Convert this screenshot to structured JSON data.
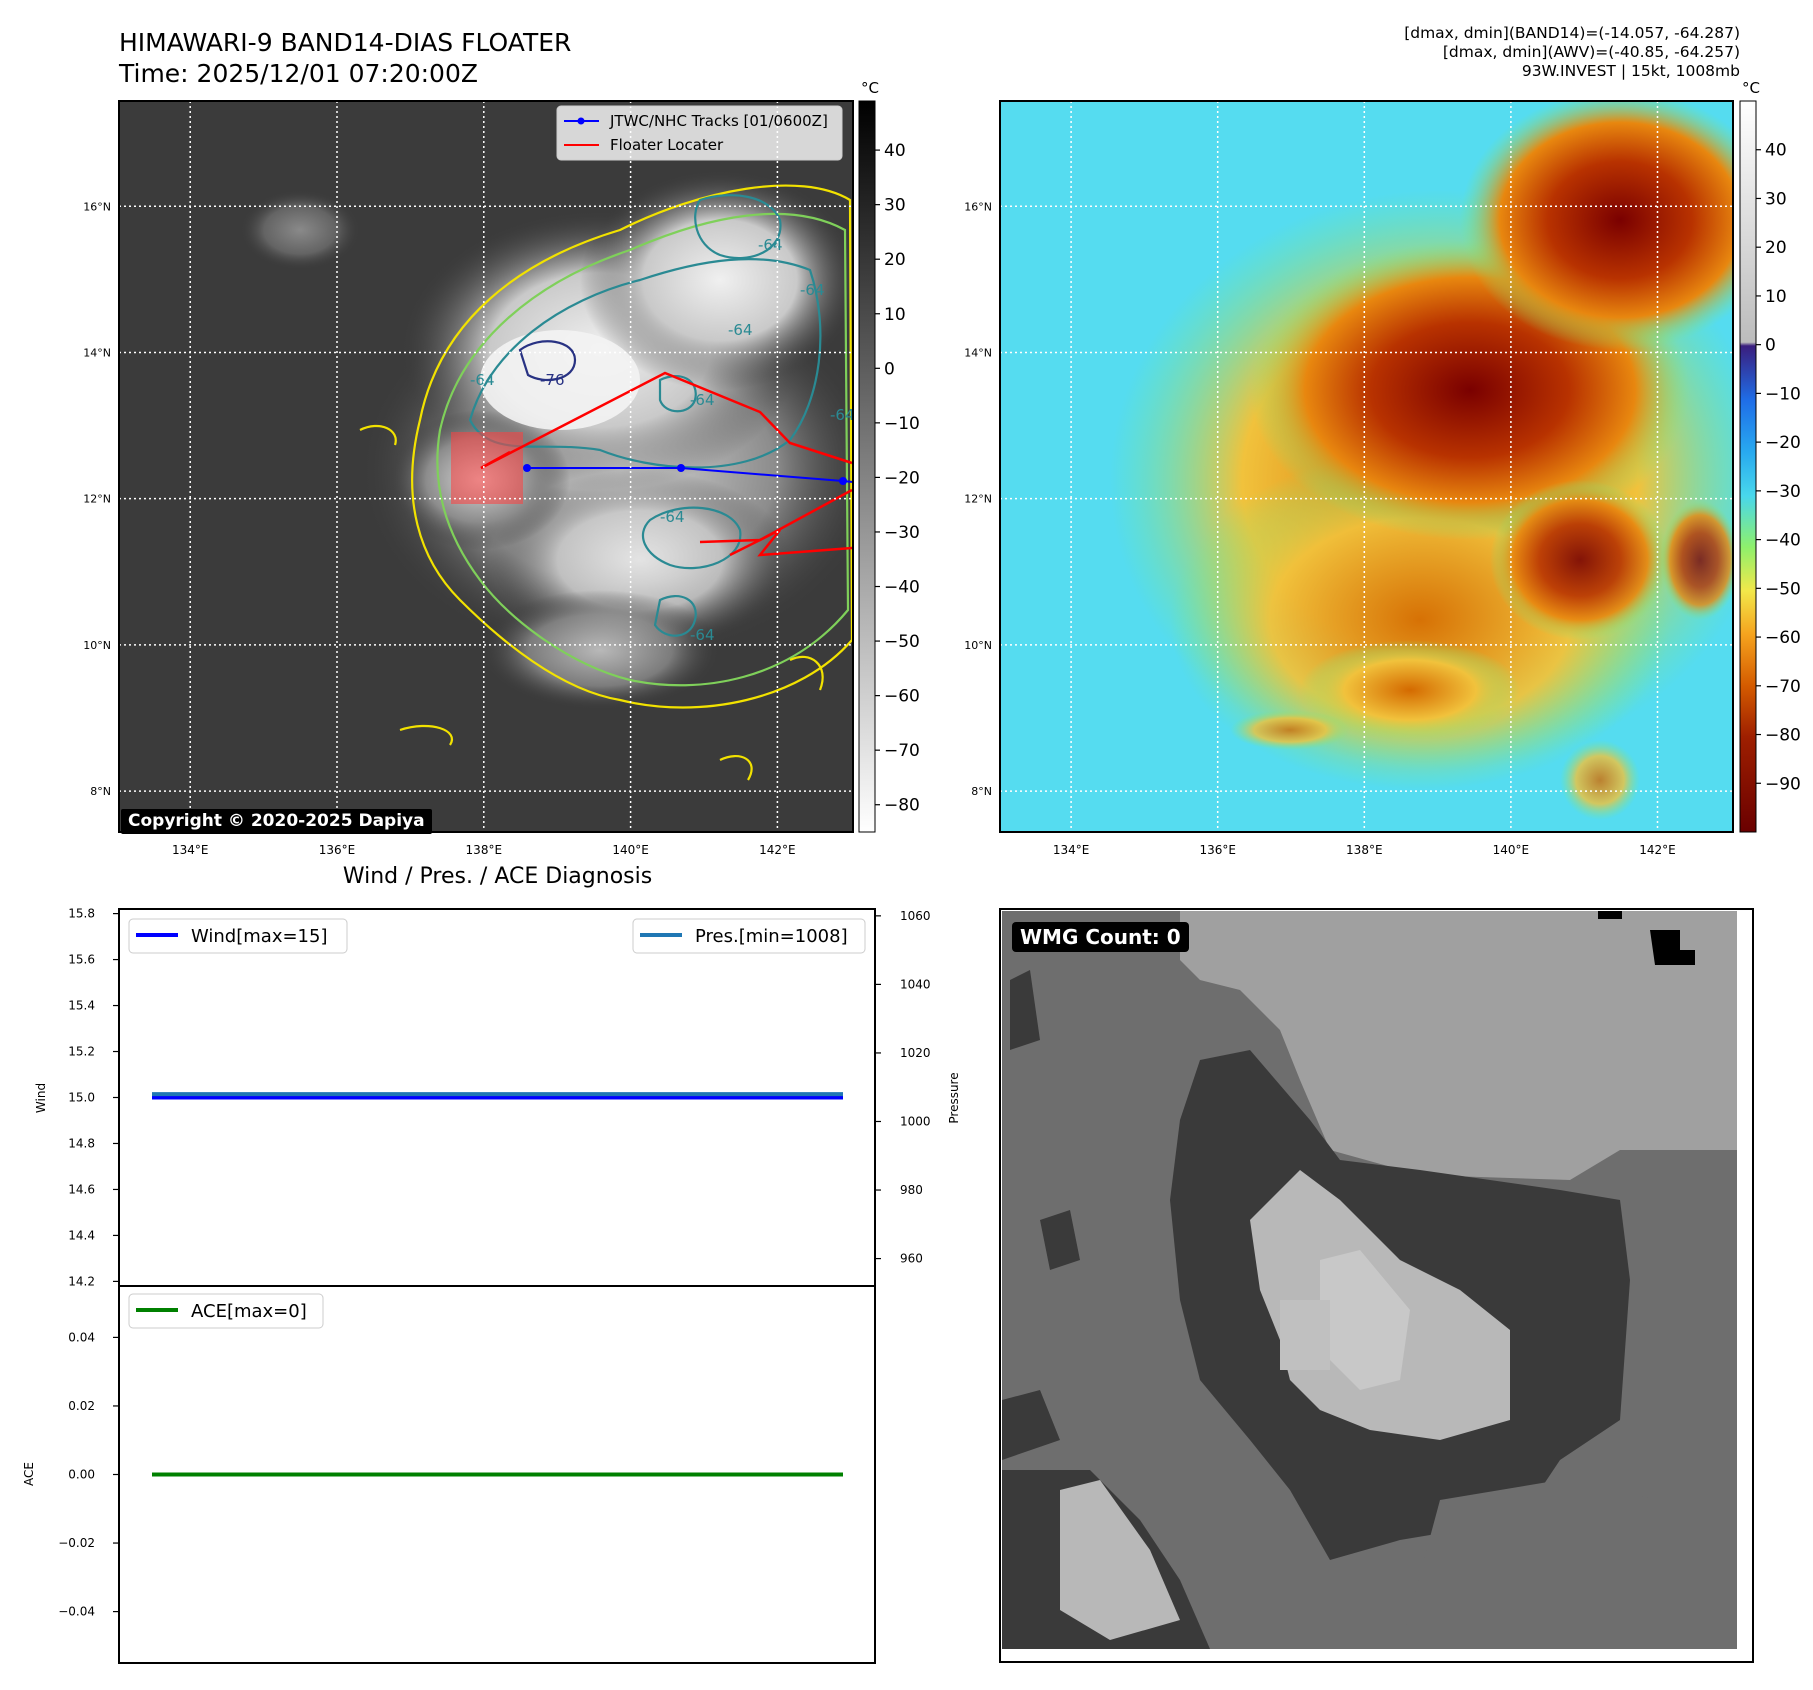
{
  "header": {
    "title_line1": "HIMAWARI-9 BAND14-DIAS FLOATER",
    "title_line2": "Time: 2025/12/01 07:20:00Z",
    "info_line1": "[dmax, dmin](BAND14)=(-14.057, -64.287)",
    "info_line2": "[dmax, dmin](AWV)=(-40.85, -64.257)",
    "info_line3": "93W.INVEST | 15kt, 1008mb"
  },
  "colors": {
    "track": "#0000ff",
    "locater": "#ff0000",
    "wind": "#0000ff",
    "pressure": "#1f77b4",
    "ace": "#008000",
    "contour_yellow": "#f2e200",
    "contour_green": "#7fd05a",
    "contour_teal": "#2a8a93",
    "contour_navy": "#283283"
  },
  "map_axes": {
    "lon_ticks": [
      "134°E",
      "136°E",
      "138°E",
      "140°E",
      "142°E"
    ],
    "lat_ticks": [
      "16°N",
      "14°N",
      "12°N",
      "10°N",
      "8°N"
    ],
    "lon_values": [
      134,
      136,
      138,
      140,
      142
    ],
    "lat_values": [
      16,
      14,
      12,
      10,
      8
    ],
    "lon_range": [
      133.03,
      143.03
    ],
    "lat_range": [
      7.44,
      17.44
    ]
  },
  "ir_panel": {
    "colorbar_unit": "°C",
    "colorbar_ticks": [
      "40",
      "30",
      "20",
      "10",
      "0",
      "−10",
      "−20",
      "−30",
      "−40",
      "−50",
      "−60",
      "−70",
      "−80"
    ],
    "colorbar_values": [
      40,
      30,
      20,
      10,
      0,
      -10,
      -20,
      -30,
      -40,
      -50,
      -60,
      -70,
      -80
    ],
    "colorbar_range": [
      -85,
      49
    ],
    "legend": [
      "JTWC/NHC Tracks [01/0600Z]",
      "Floater Locater"
    ],
    "contour_labels": [
      "-64",
      "-64",
      "-64",
      "-64",
      "-64",
      "-64",
      "-76",
      "-64",
      "-64"
    ],
    "copyright": "Copyright © 2020-2025 Dapiya"
  },
  "awv_panel": {
    "colorbar_unit": "°C",
    "colorbar_ticks": [
      "40",
      "30",
      "20",
      "10",
      "0",
      "−10",
      "−20",
      "−30",
      "−40",
      "−50",
      "−60",
      "−70",
      "−80",
      "−90"
    ],
    "colorbar_values": [
      40,
      30,
      20,
      10,
      0,
      -10,
      -20,
      -30,
      -40,
      -50,
      -60,
      -70,
      -80,
      -90
    ],
    "colorbar_range": [
      -100,
      50
    ]
  },
  "diagnosis": {
    "title": "Wind / Pres. / ACE Diagnosis",
    "wind_label": "Wind",
    "pressure_label": "Pressure",
    "ace_label": "ACE",
    "wind_legend": "Wind[max=15]",
    "pressure_legend": "Pres.[min=1008]",
    "ace_legend": "ACE[max=0]",
    "wind_ticks": [
      "15.8",
      "15.6",
      "15.4",
      "15.2",
      "15.0",
      "14.8",
      "14.6",
      "14.4",
      "14.2"
    ],
    "pressure_ticks": [
      "1060",
      "1040",
      "1020",
      "1000",
      "980",
      "960"
    ],
    "ace_ticks": [
      "0.04",
      "0.02",
      "0.00",
      "−0.02",
      "−0.04"
    ]
  },
  "chart_data": [
    {
      "type": "line",
      "ylabel": "Wind",
      "y2label": "Pressure",
      "x": [
        0,
        1
      ],
      "series": [
        {
          "name": "Wind[max=15]",
          "axis": "left",
          "values": [
            15,
            15
          ]
        },
        {
          "name": "Pres.[min=1008]",
          "axis": "right",
          "values": [
            1008,
            1008
          ]
        }
      ],
      "ylim": [
        14.18,
        15.82
      ],
      "y2lim": [
        952,
        1062
      ],
      "legend": "top-left / top-right"
    },
    {
      "type": "line",
      "ylabel": "ACE",
      "x": [
        0,
        1
      ],
      "series": [
        {
          "name": "ACE[max=0]",
          "values": [
            0,
            0
          ]
        }
      ],
      "ylim": [
        -0.055,
        0.055
      ],
      "legend": "top-left"
    }
  ],
  "wmg": {
    "badge": "WMG Count: 0"
  }
}
